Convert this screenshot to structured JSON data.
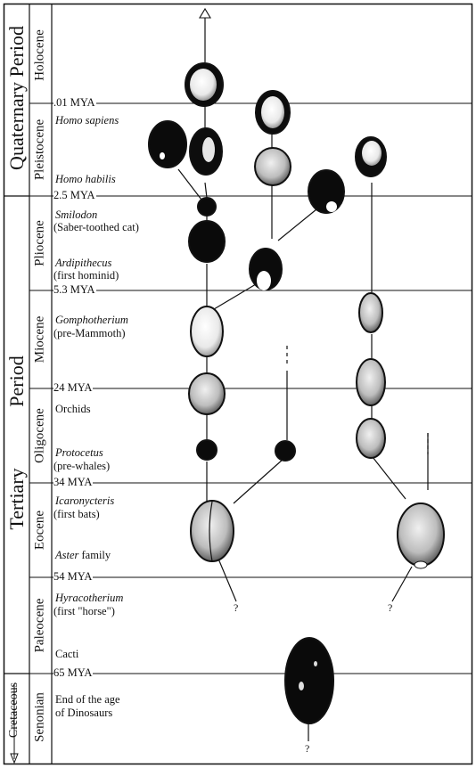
{
  "periods": {
    "quaternary": "Quaternary Period",
    "tertiary_word": "Tertiary",
    "period_word": "Period",
    "cretaceous": "Cretaceous"
  },
  "epochs": {
    "holocene": "Holocene",
    "pleistocene": "Pleistocene",
    "pliocene": "Pliocene",
    "miocene": "Miocene",
    "oligocene": "Oligocene",
    "eocene": "Eocene",
    "paleocene": "Paleocene",
    "senonian": "Senonian"
  },
  "boundaries": {
    "b001": ".01 MYA",
    "b25": "2.5 MYA",
    "b53": "5.3 MYA",
    "b24": "24 MYA",
    "b34": "34 MYA",
    "b54": "54 MYA",
    "b65": "65 MYA"
  },
  "events": {
    "homo_sapiens": "Homo sapiens",
    "homo_habilis": "Homo habilis",
    "smilodon": "Smilodon",
    "smilodon_note": "(Saber-toothed cat)",
    "ardipithecus": "Ardipithecus",
    "ardipithecus_note": "(first hominid)",
    "gomphotherium": "Gomphotherium",
    "gomphotherium_note": "(pre-Mammoth)",
    "orchids": "Orchids",
    "protocetus": "Protocetus",
    "protocetus_note": "(pre-whales)",
    "icaronycteris": "Icaronycteris",
    "icaronycteris_note": "(first bats)",
    "aster": "Aster",
    "aster_suffix": " family",
    "hyracotherium": "Hyracotherium",
    "hyracotherium_note": "(first \"horse\")",
    "cacti": "Cacti",
    "dinosaurs_line1": "End of the age",
    "dinosaurs_line2": "of Dinosaurs"
  },
  "unknown_marker": "?",
  "colors": {
    "ink": "#111111",
    "seed_light": "#f2f2f2",
    "seed_dark": "#0b0b0b"
  }
}
